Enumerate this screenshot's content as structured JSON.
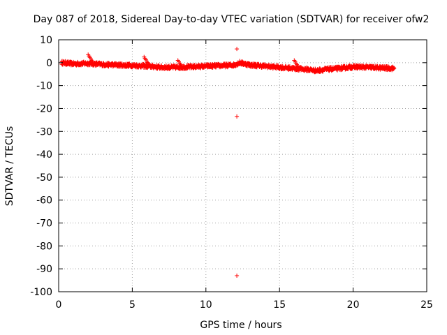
{
  "chart_data": {
    "type": "scatter",
    "title": "Day 087 of 2018, Sidereal Day-to-day VTEC variation (SDTVAR) for receiver ofw2",
    "xlabel": "GPS time / hours",
    "ylabel": "SDTVAR / TECUs",
    "xlim": [
      0,
      25
    ],
    "ylim": [
      -100,
      10
    ],
    "xticks": [
      0,
      5,
      10,
      15,
      20,
      25
    ],
    "yticks": [
      10,
      0,
      -10,
      -20,
      -30,
      -40,
      -50,
      -60,
      -70,
      -80,
      -90,
      -100
    ],
    "grid": true,
    "marker": "+",
    "series_color": "#ff0000",
    "trend": [
      [
        0.2,
        0.0
      ],
      [
        1.0,
        -0.5
      ],
      [
        2.0,
        -0.3
      ],
      [
        3.0,
        -0.8
      ],
      [
        4.0,
        -1.0
      ],
      [
        5.0,
        -1.2
      ],
      [
        6.0,
        -1.5
      ],
      [
        7.0,
        -2.0
      ],
      [
        8.0,
        -2.0
      ],
      [
        9.0,
        -1.8
      ],
      [
        10.0,
        -1.5
      ],
      [
        11.0,
        -1.3
      ],
      [
        11.9,
        -1.0
      ],
      [
        12.3,
        0.0
      ],
      [
        13.0,
        -1.0
      ],
      [
        14.0,
        -1.5
      ],
      [
        15.0,
        -2.0
      ],
      [
        16.0,
        -2.5
      ],
      [
        17.0,
        -3.0
      ],
      [
        17.5,
        -3.5
      ],
      [
        18.0,
        -3.0
      ],
      [
        19.0,
        -2.5
      ],
      [
        20.0,
        -1.8
      ],
      [
        21.0,
        -2.0
      ],
      [
        22.0,
        -2.3
      ],
      [
        22.8,
        -2.5
      ]
    ],
    "spikes": [
      [
        2.0,
        3.5
      ],
      [
        5.8,
        2.5
      ],
      [
        8.1,
        1.0
      ],
      [
        16.0,
        1.0
      ]
    ],
    "outliers": [
      [
        12.1,
        6.0
      ],
      [
        12.1,
        -23.5
      ],
      [
        12.1,
        -93.0
      ]
    ]
  }
}
